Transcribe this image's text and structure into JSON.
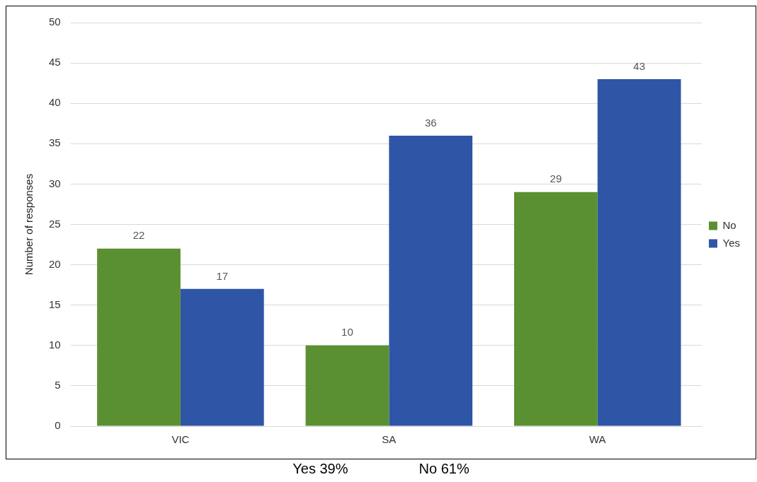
{
  "chart_data": {
    "type": "bar",
    "ylabel": "Number of responses",
    "categories": [
      "VIC",
      "SA",
      "WA"
    ],
    "series": [
      {
        "name": "No",
        "color": "#5b9032",
        "values": [
          22,
          10,
          29
        ]
      },
      {
        "name": "Yes",
        "color": "#2f56a6",
        "values": [
          17,
          36,
          43
        ]
      }
    ],
    "ylim": [
      0,
      50
    ],
    "yticks": [
      0,
      5,
      10,
      15,
      20,
      25,
      30,
      35,
      40,
      45,
      50
    ],
    "grid": "y",
    "legend": "right",
    "data_labels": true,
    "annotations": [
      "Yes 39%",
      "No 61%"
    ]
  }
}
